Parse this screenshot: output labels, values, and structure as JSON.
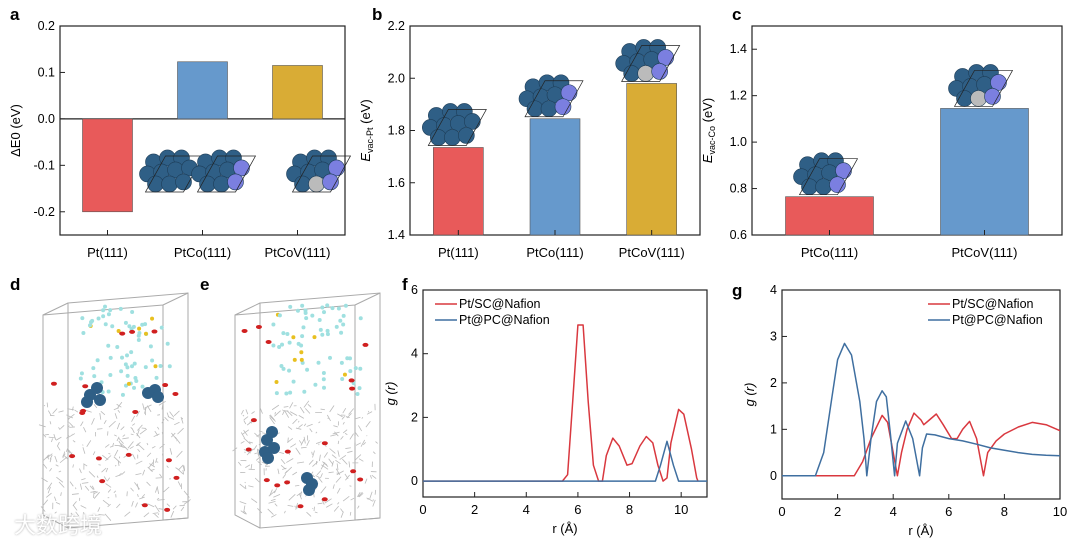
{
  "panel_labels": [
    "a",
    "b",
    "c",
    "d",
    "e",
    "f",
    "g"
  ],
  "watermark": "大数跨境",
  "colors": {
    "red": "#e85a5a",
    "blue": "#6699cc",
    "gold": "#d9ac35",
    "line_red": "#d9383f",
    "line_blue": "#3f6fa0",
    "atom": "#2f5f86"
  },
  "chart_data": [
    {
      "id": "a",
      "type": "bar",
      "categories": [
        "Pt(111)",
        "PtCo(111)",
        "PtCoV(111)"
      ],
      "values": [
        -0.2,
        0.123,
        0.115
      ],
      "ylabel": "ΔE0 (eV)",
      "ylabel_main": "ΔE",
      "ylabel_sub": "0",
      "ylabel_unit": " (eV)",
      "ylim": [
        -0.25,
        0.2
      ],
      "yticks": [
        -0.2,
        -0.1,
        0.0,
        0.1,
        0.2
      ],
      "ytick_labels": [
        "-0.2",
        "-0.1",
        "0.0",
        "0.1",
        "0.2"
      ],
      "bar_colors": [
        "red",
        "blue",
        "gold"
      ]
    },
    {
      "id": "b",
      "type": "bar",
      "categories": [
        "Pt(111)",
        "PtCo(111)",
        "PtCoV(111)"
      ],
      "values": [
        1.735,
        1.845,
        1.98
      ],
      "ylabel": "Evac-Pt (eV)",
      "ylabel_main": "E",
      "ylabel_sub": "vac-Pt",
      "ylabel_unit": " (eV)",
      "ylim": [
        1.4,
        2.2
      ],
      "yticks": [
        1.4,
        1.6,
        1.8,
        2.0,
        2.2
      ],
      "ytick_labels": [
        "1.4",
        "1.6",
        "1.8",
        "2.0",
        "2.2"
      ],
      "bar_colors": [
        "red",
        "blue",
        "gold"
      ]
    },
    {
      "id": "c",
      "type": "bar",
      "categories": [
        "PtCo(111)",
        "PtCoV(111)"
      ],
      "values": [
        0.765,
        1.145
      ],
      "ylabel": "Evac-Co (eV)",
      "ylabel_main": "E",
      "ylabel_sub": "vac-Co",
      "ylabel_unit": " (eV)",
      "ylim": [
        0.6,
        1.5
      ],
      "yticks": [
        0.6,
        0.8,
        1.0,
        1.2,
        1.4
      ],
      "ytick_labels": [
        "0.6",
        "0.8",
        "1.0",
        "1.2",
        "1.4"
      ],
      "bar_colors": [
        "red",
        "blue"
      ]
    },
    {
      "id": "f",
      "type": "line",
      "xlabel": "r (Å)",
      "ylabel": "g (r)",
      "xlim": [
        0,
        11
      ],
      "ylim": [
        -0.5,
        6
      ],
      "xticks": [
        0,
        2,
        4,
        6,
        8,
        10
      ],
      "xtick_labels": [
        "0",
        "2",
        "4",
        "6",
        "8",
        "10"
      ],
      "yticks": [
        0,
        2,
        4,
        6
      ],
      "ytick_labels": [
        "0",
        "2",
        "4",
        "6"
      ],
      "legend": "top-left",
      "series": [
        {
          "name": "Pt/SC@Nafion",
          "color": "line_red",
          "points": [
            [
              0,
              0
            ],
            [
              5.4,
              0
            ],
            [
              5.6,
              0.2
            ],
            [
              5.8,
              2.5
            ],
            [
              6.0,
              4.9
            ],
            [
              6.2,
              4.9
            ],
            [
              6.4,
              2.5
            ],
            [
              6.6,
              0.5
            ],
            [
              6.8,
              0
            ],
            [
              6.95,
              0
            ],
            [
              7.1,
              0.8
            ],
            [
              7.35,
              1.35
            ],
            [
              7.6,
              1.1
            ],
            [
              7.9,
              0.5
            ],
            [
              8.1,
              0.55
            ],
            [
              8.4,
              1.1
            ],
            [
              8.65,
              1.4
            ],
            [
              8.9,
              1.2
            ],
            [
              9.1,
              0.5
            ],
            [
              9.3,
              0
            ],
            [
              9.45,
              0.1
            ],
            [
              9.6,
              1.2
            ],
            [
              9.9,
              2.25
            ],
            [
              10.1,
              2.1
            ],
            [
              10.4,
              1.0
            ],
            [
              10.6,
              0.1
            ],
            [
              10.65,
              0
            ]
          ]
        },
        {
          "name": "Pt@PC@Nafion",
          "color": "line_blue",
          "points": [
            [
              0,
              0
            ],
            [
              9.0,
              0
            ],
            [
              9.2,
              0.5
            ],
            [
              9.45,
              1.25
            ],
            [
              9.7,
              0.5
            ],
            [
              9.9,
              0
            ],
            [
              11,
              0
            ]
          ]
        }
      ]
    },
    {
      "id": "g",
      "type": "line",
      "xlabel": "r (Å)",
      "ylabel": "g (r)",
      "xlim": [
        0,
        10
      ],
      "ylim": [
        -0.5,
        4
      ],
      "xticks": [
        0,
        2,
        4,
        6,
        8,
        10
      ],
      "xtick_labels": [
        "0",
        "2",
        "4",
        "6",
        "8",
        "10"
      ],
      "yticks": [
        0,
        1,
        2,
        3,
        4
      ],
      "ytick_labels": [
        "0",
        "1",
        "2",
        "3",
        "4"
      ],
      "legend": "top-right",
      "series": [
        {
          "name": "Pt/SC@Nafion",
          "color": "line_red",
          "points": [
            [
              0,
              0
            ],
            [
              2.6,
              0
            ],
            [
              2.9,
              0.3
            ],
            [
              3.2,
              0.8
            ],
            [
              3.6,
              1.3
            ],
            [
              3.8,
              1.15
            ],
            [
              4.0,
              0.5
            ],
            [
              4.15,
              0
            ],
            [
              4.3,
              0.5
            ],
            [
              4.5,
              1.0
            ],
            [
              4.75,
              1.35
            ],
            [
              5.0,
              1.2
            ],
            [
              5.1,
              1.1
            ],
            [
              5.3,
              1.2
            ],
            [
              5.55,
              1.33
            ],
            [
              5.8,
              1.1
            ],
            [
              6.1,
              0.8
            ],
            [
              6.3,
              0.8
            ],
            [
              6.5,
              1.0
            ],
            [
              6.75,
              1.17
            ],
            [
              7.0,
              0.8
            ],
            [
              7.25,
              0
            ],
            [
              7.4,
              0.5
            ],
            [
              7.7,
              0.75
            ],
            [
              8.0,
              0.9
            ],
            [
              8.5,
              1.05
            ],
            [
              9.0,
              1.15
            ],
            [
              9.5,
              1.1
            ],
            [
              10,
              0.97
            ]
          ]
        },
        {
          "name": "Pt@PC@Nafion",
          "color": "line_blue",
          "points": [
            [
              0,
              0
            ],
            [
              1.2,
              0
            ],
            [
              1.5,
              0.5
            ],
            [
              1.8,
              1.7
            ],
            [
              2.0,
              2.5
            ],
            [
              2.25,
              2.85
            ],
            [
              2.5,
              2.6
            ],
            [
              2.8,
              1.6
            ],
            [
              2.95,
              0.8
            ],
            [
              3.05,
              0
            ],
            [
              3.2,
              0.8
            ],
            [
              3.4,
              1.6
            ],
            [
              3.6,
              1.83
            ],
            [
              3.75,
              1.7
            ],
            [
              3.9,
              0.9
            ],
            [
              4.05,
              0
            ],
            [
              4.15,
              0.7
            ],
            [
              4.45,
              1.18
            ],
            [
              4.7,
              0.8
            ],
            [
              4.95,
              0
            ],
            [
              5.05,
              0.6
            ],
            [
              5.2,
              0.9
            ],
            [
              5.5,
              0.88
            ],
            [
              6,
              0.8
            ],
            [
              6.5,
              0.75
            ],
            [
              7,
              0.68
            ],
            [
              7.5,
              0.6
            ],
            [
              8,
              0.55
            ],
            [
              8.5,
              0.5
            ],
            [
              9,
              0.46
            ],
            [
              9.5,
              0.44
            ],
            [
              10,
              0.43
            ]
          ]
        }
      ]
    }
  ]
}
